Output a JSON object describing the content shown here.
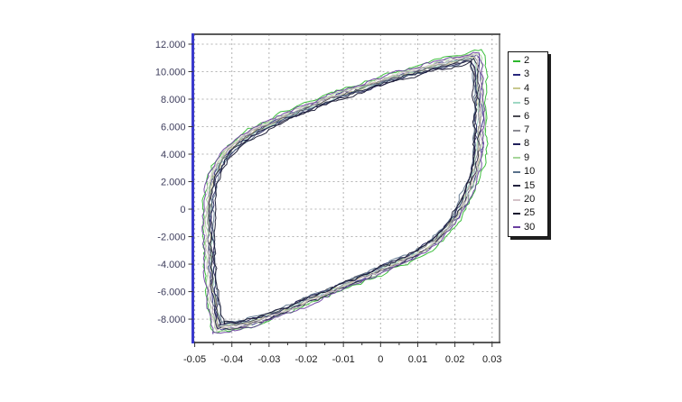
{
  "figure": {
    "background": "#ffffff",
    "axis_colors": {
      "left_spine": "#3a3acd",
      "top_spine": "#5a5a5a",
      "right_spine": "#4a4a4a",
      "bottom_spine": "#222222",
      "grid": "#b3b3b3",
      "tick": "#333333",
      "y_label_text": "#3d3d5c",
      "x_label_text": "#1b1b1b"
    }
  },
  "legend": {
    "position": "right",
    "items": [
      "2",
      "3",
      "4",
      "5",
      "6",
      "7",
      "8",
      "9",
      "10",
      "15",
      "20",
      "25",
      "30"
    ]
  },
  "chart_data": {
    "type": "line",
    "title": "",
    "xlabel": "",
    "ylabel": "",
    "grid": true,
    "legend_position": "right",
    "xlim": [
      -0.0505,
      0.032
    ],
    "ylim": [
      -9.7,
      12.72
    ],
    "x_ticks": [
      {
        "value": -0.05,
        "label": "-0.05"
      },
      {
        "value": -0.04,
        "label": "-0.04"
      },
      {
        "value": -0.03,
        "label": "-0.03"
      },
      {
        "value": -0.02,
        "label": "-0.02"
      },
      {
        "value": -0.01,
        "label": "-0.01"
      },
      {
        "value": 0,
        "label": "0"
      },
      {
        "value": 0.01,
        "label": "0.01"
      },
      {
        "value": 0.02,
        "label": "0.02"
      },
      {
        "value": 0.03,
        "label": "0.03"
      }
    ],
    "x_minor_tick_step": 0.005,
    "y_ticks": [
      {
        "value": 12,
        "label": "12.000"
      },
      {
        "value": 10,
        "label": "10.000"
      },
      {
        "value": 8,
        "label": "8.000"
      },
      {
        "value": 6,
        "label": "6.000"
      },
      {
        "value": 4,
        "label": "4.000"
      },
      {
        "value": 2,
        "label": "2.000"
      },
      {
        "value": 0,
        "label": "0"
      },
      {
        "value": -2,
        "label": "-2.000"
      },
      {
        "value": -4,
        "label": "-4.000"
      },
      {
        "value": -6,
        "label": "-6.000"
      },
      {
        "value": -8,
        "label": "-8.000"
      }
    ],
    "series": [
      {
        "name": "2",
        "color": "#2db82d",
        "scale": 1.05
      },
      {
        "name": "3",
        "color": "#28287d",
        "scale": 1.012
      },
      {
        "name": "4",
        "color": "#c8c88e",
        "scale": 1.0
      },
      {
        "name": "5",
        "color": "#9fd8c4",
        "scale": 0.992
      },
      {
        "name": "6",
        "color": "#4a4a52",
        "scale": 0.985
      },
      {
        "name": "7",
        "color": "#8c8c94",
        "scale": 1.005
      },
      {
        "name": "8",
        "color": "#20205a",
        "scale": 0.978
      },
      {
        "name": "9",
        "color": "#a6d69a",
        "scale": 1.028
      },
      {
        "name": "10",
        "color": "#58708a",
        "scale": 0.97
      },
      {
        "name": "15",
        "color": "#23233f",
        "scale": 0.998
      },
      {
        "name": "20",
        "color": "#d4c2c8",
        "scale": 1.018
      },
      {
        "name": "25",
        "color": "#14142e",
        "scale": 0.963
      },
      {
        "name": "30",
        "color": "#6a3fa0",
        "scale": 1.04
      }
    ],
    "loop_center": [
      -0.009,
      1.0
    ],
    "noise": {
      "x_amp": 0.0008,
      "y_amp": 0.2
    },
    "base_loop": [
      [
        -0.0435,
        -8.6
      ],
      [
        -0.0444,
        -7.6
      ],
      [
        -0.0451,
        -6.2
      ],
      [
        -0.0456,
        -4.4
      ],
      [
        -0.0459,
        -2.4
      ],
      [
        -0.046,
        -0.4
      ],
      [
        -0.0457,
        1.0
      ],
      [
        -0.045,
        2.0
      ],
      [
        -0.0438,
        2.9
      ],
      [
        -0.042,
        3.7
      ],
      [
        -0.0398,
        4.4
      ],
      [
        -0.037,
        5.0
      ],
      [
        -0.0338,
        5.6
      ],
      [
        -0.03,
        6.1
      ],
      [
        -0.0258,
        6.65
      ],
      [
        -0.0214,
        7.15
      ],
      [
        -0.0168,
        7.65
      ],
      [
        -0.012,
        8.15
      ],
      [
        -0.0072,
        8.6
      ],
      [
        -0.0024,
        9.0
      ],
      [
        0.0026,
        9.45
      ],
      [
        0.0076,
        9.85
      ],
      [
        0.0124,
        10.2
      ],
      [
        0.0168,
        10.5
      ],
      [
        0.0206,
        10.75
      ],
      [
        0.0235,
        10.95
      ],
      [
        0.0252,
        11.05
      ],
      [
        0.0259,
        10.6
      ],
      [
        0.0263,
        9.4
      ],
      [
        0.0265,
        7.8
      ],
      [
        0.0266,
        6.0
      ],
      [
        0.0264,
        4.4
      ],
      [
        0.0259,
        3.2
      ],
      [
        0.025,
        2.3
      ],
      [
        0.0237,
        1.3
      ],
      [
        0.0221,
        0.35
      ],
      [
        0.0202,
        -0.55
      ],
      [
        0.018,
        -1.4
      ],
      [
        0.0154,
        -2.15
      ],
      [
        0.0124,
        -2.8
      ],
      [
        0.009,
        -3.35
      ],
      [
        0.0052,
        -3.85
      ],
      [
        0.001,
        -4.35
      ],
      [
        -0.0035,
        -4.85
      ],
      [
        -0.0082,
        -5.4
      ],
      [
        -0.013,
        -5.95
      ],
      [
        -0.0178,
        -6.5
      ],
      [
        -0.0226,
        -7.05
      ],
      [
        -0.0272,
        -7.55
      ],
      [
        -0.0315,
        -8.0
      ],
      [
        -0.0355,
        -8.3
      ],
      [
        -0.0395,
        -8.5
      ],
      [
        -0.0435,
        -8.6
      ]
    ]
  }
}
